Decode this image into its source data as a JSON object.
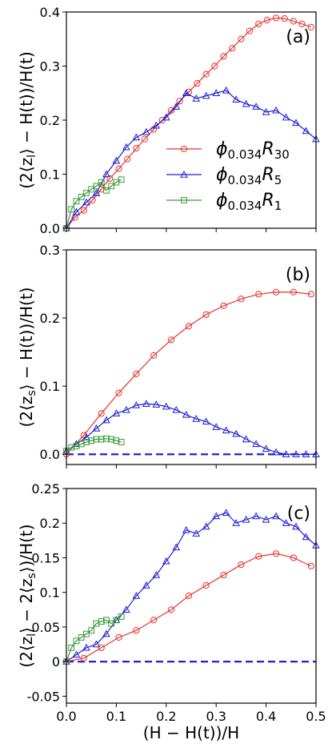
{
  "colors": {
    "phi_R30": "#e8302a",
    "phi_R5": "#1f1fd6",
    "phi_R1": "#3a9a3a",
    "zero_line": "#1f1fd6"
  },
  "legend": {
    "entries": [
      {
        "series": "phi_R30",
        "marker": "circle",
        "label_main": "ϕ",
        "label_sub": "0.034",
        "label_R": "R",
        "label_Rsub": "30"
      },
      {
        "series": "phi_R5",
        "marker": "triangle",
        "label_main": "ϕ",
        "label_sub": "0.034",
        "label_R": "R",
        "label_Rsub": "5"
      },
      {
        "series": "phi_R1",
        "marker": "square",
        "label_main": "ϕ",
        "label_sub": "0.034",
        "label_R": "R",
        "label_Rsub": "1"
      }
    ]
  },
  "chart_data": [
    {
      "type": "line",
      "panel_label": "(a)",
      "ylabel": "⟨2⟨z_l⟩ − H(t)⟩/H(t)",
      "ylabel_parts": [
        "(2⟨z",
        "l",
        "⟩ − H(t))/H(t)"
      ],
      "xlabel": "",
      "xlim": [
        0,
        0.5
      ],
      "ylim": [
        0,
        0.4
      ],
      "yticks": [
        "0.0",
        "0.1",
        "0.2",
        "0.3",
        "0.4"
      ],
      "ytick_values": [
        0,
        0.1,
        0.2,
        0.3,
        0.4
      ],
      "zero_line": false,
      "series": [
        {
          "key": "phi_R30",
          "marker": "circle",
          "x": [
            0,
            0.017,
            0.035,
            0.052,
            0.07,
            0.087,
            0.105,
            0.122,
            0.14,
            0.157,
            0.175,
            0.192,
            0.21,
            0.227,
            0.245,
            0.262,
            0.28,
            0.297,
            0.315,
            0.332,
            0.35,
            0.367,
            0.385,
            0.402,
            0.42,
            0.437,
            0.455,
            0.472,
            0.49
          ],
          "y": [
            0.0,
            0.02,
            0.033,
            0.052,
            0.072,
            0.092,
            0.11,
            0.128,
            0.148,
            0.165,
            0.183,
            0.2,
            0.218,
            0.235,
            0.252,
            0.268,
            0.285,
            0.3,
            0.318,
            0.333,
            0.35,
            0.365,
            0.378,
            0.385,
            0.389,
            0.388,
            0.383,
            0.378,
            0.372
          ]
        },
        {
          "key": "phi_R5",
          "marker": "triangle",
          "x": [
            0.0,
            0.02,
            0.04,
            0.06,
            0.08,
            0.1,
            0.12,
            0.14,
            0.16,
            0.18,
            0.2,
            0.22,
            0.24,
            0.26,
            0.28,
            0.3,
            0.32,
            0.34,
            0.36,
            0.38,
            0.4,
            0.42,
            0.44,
            0.46,
            0.48,
            0.5
          ],
          "y": [
            0.0,
            0.03,
            0.048,
            0.065,
            0.1,
            0.125,
            0.15,
            0.168,
            0.178,
            0.19,
            0.205,
            0.225,
            0.25,
            0.24,
            0.245,
            0.25,
            0.255,
            0.238,
            0.23,
            0.225,
            0.215,
            0.218,
            0.205,
            0.195,
            0.18,
            0.165
          ]
        },
        {
          "key": "phi_R1",
          "marker": "square",
          "x": [
            0.0,
            0.01,
            0.02,
            0.03,
            0.04,
            0.05,
            0.06,
            0.07,
            0.08,
            0.09,
            0.1,
            0.11
          ],
          "y": [
            0.0,
            0.035,
            0.05,
            0.058,
            0.065,
            0.072,
            0.078,
            0.085,
            0.07,
            0.078,
            0.085,
            0.09
          ]
        }
      ]
    },
    {
      "type": "line",
      "panel_label": "(b)",
      "ylabel": "(2⟨z_s⟩ − H(t))/H(t)",
      "ylabel_parts": [
        "(2⟨z",
        "s",
        "⟩ − H(t))/H(t)"
      ],
      "xlabel": "",
      "xlim": [
        0,
        0.5
      ],
      "ylim": [
        -0.015,
        0.3
      ],
      "yticks": [
        "0.0",
        "0.1",
        "0.2",
        "0.3"
      ],
      "ytick_values": [
        0,
        0.1,
        0.2,
        0.3
      ],
      "zero_line": true,
      "series": [
        {
          "key": "phi_R30",
          "marker": "circle",
          "x": [
            0,
            0.035,
            0.07,
            0.105,
            0.14,
            0.175,
            0.21,
            0.245,
            0.28,
            0.315,
            0.35,
            0.385,
            0.42,
            0.455,
            0.49
          ],
          "y": [
            0.0,
            0.028,
            0.06,
            0.09,
            0.118,
            0.145,
            0.168,
            0.188,
            0.205,
            0.218,
            0.228,
            0.235,
            0.238,
            0.238,
            0.235
          ]
        },
        {
          "key": "phi_R5",
          "marker": "triangle",
          "x": [
            0.0,
            0.02,
            0.04,
            0.06,
            0.08,
            0.1,
            0.12,
            0.14,
            0.16,
            0.18,
            0.2,
            0.22,
            0.24,
            0.26,
            0.28,
            0.3,
            0.32,
            0.34,
            0.36,
            0.38,
            0.4,
            0.42,
            0.44,
            0.46,
            0.48,
            0.5
          ],
          "y": [
            0.005,
            0.015,
            0.025,
            0.038,
            0.05,
            0.06,
            0.065,
            0.072,
            0.074,
            0.073,
            0.07,
            0.065,
            0.058,
            0.052,
            0.048,
            0.04,
            0.035,
            0.03,
            0.022,
            0.015,
            0.008,
            0.003,
            0.0,
            0.0,
            0.0,
            0.0
          ]
        },
        {
          "key": "phi_R1",
          "marker": "square",
          "x": [
            0.0,
            0.01,
            0.02,
            0.03,
            0.04,
            0.05,
            0.06,
            0.07,
            0.08,
            0.09,
            0.1,
            0.11
          ],
          "y": [
            0.005,
            0.01,
            0.012,
            0.015,
            0.018,
            0.02,
            0.022,
            0.022,
            0.023,
            0.022,
            0.02,
            0.018
          ]
        }
      ]
    },
    {
      "type": "line",
      "panel_label": "(c)",
      "ylabel": "(2⟨z_l⟩ − 2⟨z_s⟩)/H(t)",
      "ylabel_parts": [
        "(2⟨z",
        "l",
        "⟩ − 2⟨z",
        "s",
        "⟩)/H(t)"
      ],
      "xlabel": "(H − H(t))/H",
      "xlim": [
        0,
        0.5
      ],
      "ylim": [
        -0.06,
        0.25
      ],
      "xticks": [
        "0.0",
        "0.1",
        "0.2",
        "0.3",
        "0.4",
        "0.5"
      ],
      "xtick_values": [
        0,
        0.1,
        0.2,
        0.3,
        0.4,
        0.5
      ],
      "yticks": [
        "-0.05",
        "0",
        "0.05",
        "0.1",
        "0.15",
        "0.2",
        "0.25"
      ],
      "ytick_values": [
        -0.05,
        0,
        0.05,
        0.1,
        0.15,
        0.2,
        0.25
      ],
      "zero_line": true,
      "series": [
        {
          "key": "phi_R30",
          "marker": "circle",
          "x": [
            0,
            0.035,
            0.07,
            0.105,
            0.14,
            0.175,
            0.21,
            0.245,
            0.28,
            0.315,
            0.35,
            0.385,
            0.42,
            0.455,
            0.49
          ],
          "y": [
            0.0,
            0.005,
            0.02,
            0.035,
            0.045,
            0.06,
            0.075,
            0.095,
            0.11,
            0.125,
            0.14,
            0.152,
            0.156,
            0.15,
            0.138
          ]
        },
        {
          "key": "phi_R5",
          "marker": "triangle",
          "x": [
            0.0,
            0.02,
            0.04,
            0.06,
            0.08,
            0.1,
            0.12,
            0.14,
            0.16,
            0.18,
            0.2,
            0.22,
            0.24,
            0.26,
            0.28,
            0.3,
            0.32,
            0.34,
            0.36,
            0.38,
            0.4,
            0.42,
            0.44,
            0.46,
            0.48,
            0.5
          ],
          "y": [
            0.0,
            0.01,
            0.02,
            0.025,
            0.04,
            0.06,
            0.075,
            0.095,
            0.11,
            0.125,
            0.145,
            0.165,
            0.19,
            0.185,
            0.195,
            0.21,
            0.215,
            0.2,
            0.205,
            0.21,
            0.205,
            0.21,
            0.2,
            0.195,
            0.18,
            0.168
          ]
        },
        {
          "key": "phi_R1",
          "marker": "square",
          "x": [
            0.0,
            0.01,
            0.02,
            0.03,
            0.04,
            0.05,
            0.06,
            0.07,
            0.08,
            0.09,
            0.1,
            0.11
          ],
          "y": [
            0.0,
            0.02,
            0.03,
            0.035,
            0.04,
            0.045,
            0.055,
            0.058,
            0.06,
            0.055,
            0.06,
            0.065
          ]
        }
      ]
    }
  ]
}
